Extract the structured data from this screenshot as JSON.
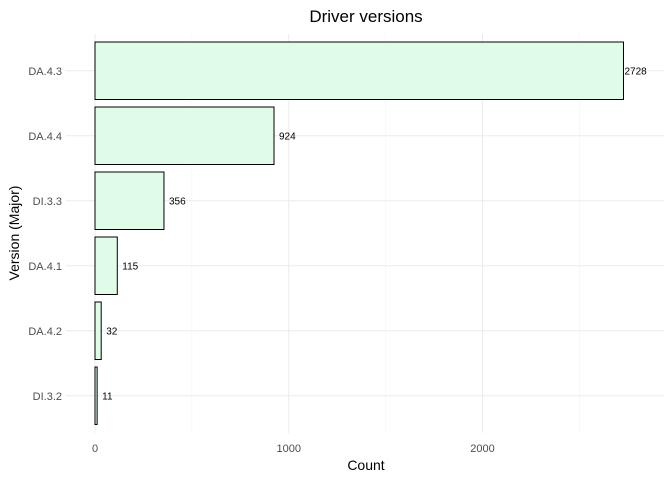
{
  "chart_data": {
    "type": "bar",
    "orientation": "horizontal",
    "title": "Driver versions",
    "xlabel": "Count",
    "ylabel": "Version (Major)",
    "categories": [
      "DA.4.3",
      "DA.4.4",
      "DI.3.3",
      "DA.4.1",
      "DA.4.2",
      "DI.3.2"
    ],
    "values": [
      2728,
      924,
      356,
      115,
      32,
      11
    ],
    "xlim": [
      0,
      2728
    ],
    "x_ticks": [
      0,
      1000,
      2000
    ],
    "grid": true,
    "legend": "none",
    "colors": {
      "bar_fill": "#e0fce9",
      "bar_stroke": "#000000",
      "grid": "#ebebeb"
    }
  }
}
